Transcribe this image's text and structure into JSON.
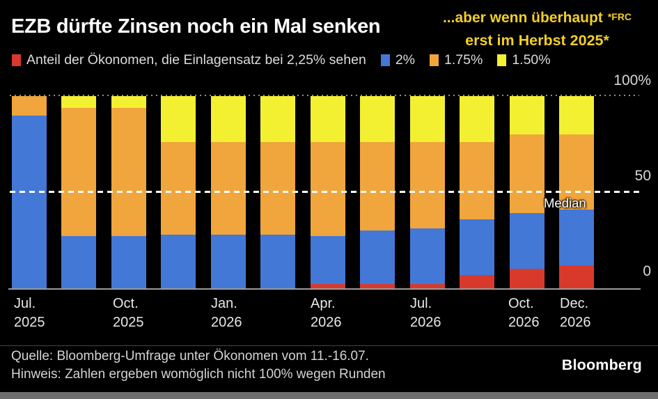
{
  "title": "EZB dürfte Zinsen noch ein Mal senken",
  "annotation": {
    "line1": "...aber wenn überhaupt",
    "footnote_marker": "*FRC",
    "line2": "erst im Herbst 2025*",
    "color": "#f2cf27"
  },
  "legend": {
    "items": [
      {
        "label": "Anteil der Ökonomen, die Einlagensatz bei 2,25% sehen",
        "color": "#d9392b"
      },
      {
        "label": "2%",
        "color": "#4478d6"
      },
      {
        "label": "1.75%",
        "color": "#f0a63c"
      },
      {
        "label": "1.50%",
        "color": "#f3f032"
      }
    ]
  },
  "chart_data": {
    "type": "bar",
    "stacked": true,
    "bar_count": 12,
    "ylim": [
      0,
      100
    ],
    "y_ticks": [
      "100%",
      "50",
      "0"
    ],
    "median_label": "Median",
    "legend_position": "top",
    "grid": "dotted line at 100, white dashed median line at 50",
    "x_tick_labels": [
      {
        "bar_index": 0,
        "line1": "Jul.",
        "line2": "2025"
      },
      {
        "bar_index": 2,
        "line1": "Oct.",
        "line2": "2025"
      },
      {
        "bar_index": 4,
        "line1": "Jan.",
        "line2": "2026"
      },
      {
        "bar_index": 6,
        "line1": "Apr.",
        "line2": "2026"
      },
      {
        "bar_index": 8,
        "line1": "Jul.",
        "line2": "2026"
      },
      {
        "bar_index": 10,
        "line1": "Oct.",
        "line2": "2026"
      },
      {
        "bar_index": 11,
        "line1": "Dec.",
        "line2": "2026"
      }
    ],
    "series": [
      {
        "name": "Anteil der Ökonomen, die Einlagensatz bei 2,25% sehen",
        "color": "#d9392b",
        "values": [
          0,
          0,
          0,
          0,
          0,
          0,
          2,
          2,
          2,
          7,
          10,
          12
        ]
      },
      {
        "name": "2%",
        "color": "#4478d6",
        "values": [
          90,
          27,
          27,
          28,
          28,
          28,
          25,
          28,
          29,
          29,
          29,
          29
        ]
      },
      {
        "name": "1.75%",
        "color": "#f0a63c",
        "values": [
          10,
          67,
          67,
          48,
          48,
          48,
          49,
          46,
          45,
          40,
          41,
          39
        ]
      },
      {
        "name": "1.50%",
        "color": "#f3f032",
        "values": [
          0,
          6,
          6,
          24,
          24,
          24,
          24,
          24,
          24,
          24,
          20,
          20
        ]
      }
    ]
  },
  "footer": {
    "source": "Quelle: Bloomberg-Umfrage unter Ökonomen vom 11.-16.07.",
    "note": "Hinweis: Zahlen ergeben womöglich nicht 100% wegen Runden",
    "brand": "Bloomberg"
  },
  "colors": {
    "background": "#000000",
    "median_line": "#ffffff",
    "grid": "#8f8f8f",
    "axis_text": "#d9d9d9",
    "bottom_strip": "#6e6e6e"
  }
}
